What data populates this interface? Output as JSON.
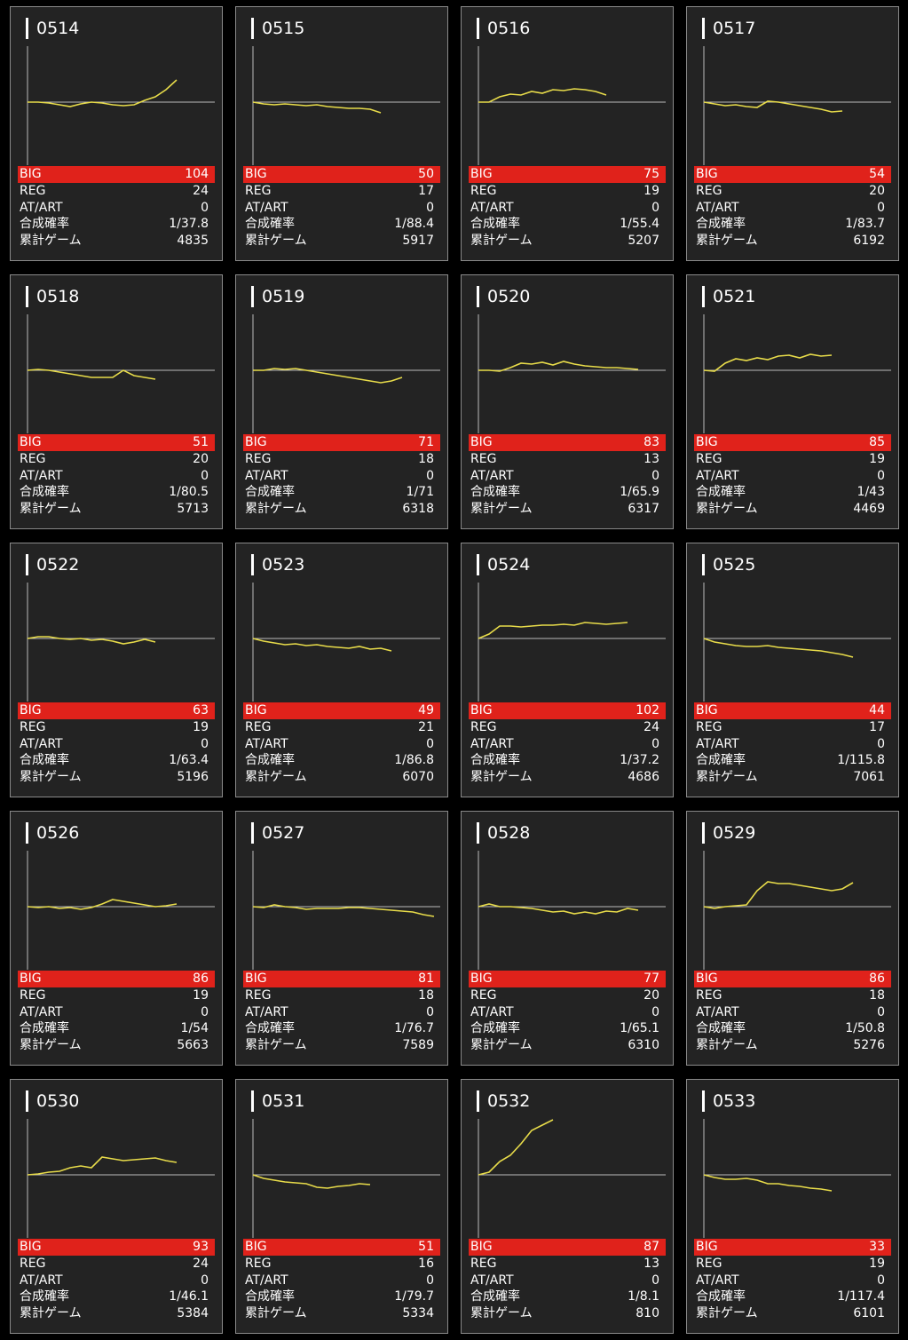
{
  "stat_labels": [
    "BIG",
    "REG",
    "AT/ART",
    "合成確率",
    "累計ゲーム"
  ],
  "cards": [
    {
      "id": "0514",
      "stats": [
        104,
        24,
        0,
        "1/37.8",
        4835
      ],
      "line": [
        0,
        0,
        -1,
        -3,
        -5,
        -2,
        0,
        -1,
        -3,
        -4,
        -3,
        2,
        6,
        14,
        25
      ]
    },
    {
      "id": "0515",
      "stats": [
        50,
        17,
        0,
        "1/88.4",
        5917
      ],
      "line": [
        0,
        -2,
        -3,
        -2,
        -3,
        -4,
        -3,
        -5,
        -6,
        -7,
        -7,
        -8,
        -12
      ]
    },
    {
      "id": "0516",
      "stats": [
        75,
        19,
        0,
        "1/55.4",
        5207
      ],
      "line": [
        0,
        0,
        6,
        9,
        8,
        12,
        10,
        14,
        13,
        15,
        14,
        12,
        8
      ]
    },
    {
      "id": "0517",
      "stats": [
        54,
        20,
        0,
        "1/83.7",
        6192
      ],
      "line": [
        0,
        -2,
        -4,
        -3,
        -5,
        -6,
        1,
        0,
        -2,
        -4,
        -6,
        -8,
        -11,
        -10
      ]
    },
    {
      "id": "0518",
      "stats": [
        51,
        20,
        0,
        "1/80.5",
        5713
      ],
      "line": [
        0,
        1,
        0,
        -2,
        -4,
        -6,
        -8,
        -8,
        -8,
        0,
        -6,
        -8,
        -10
      ]
    },
    {
      "id": "0519",
      "stats": [
        71,
        18,
        0,
        "1/71",
        6318
      ],
      "line": [
        0,
        0,
        2,
        1,
        2,
        0,
        -2,
        -4,
        -6,
        -8,
        -10,
        -12,
        -14,
        -12,
        -8
      ]
    },
    {
      "id": "0520",
      "stats": [
        83,
        13,
        0,
        "1/65.9",
        6317
      ],
      "line": [
        0,
        0,
        -1,
        3,
        8,
        7,
        9,
        6,
        10,
        7,
        5,
        4,
        3,
        3,
        2,
        1
      ]
    },
    {
      "id": "0521",
      "stats": [
        85,
        19,
        0,
        "1/43",
        4469
      ],
      "line": [
        0,
        -1,
        8,
        13,
        11,
        14,
        12,
        16,
        17,
        14,
        18,
        16,
        17
      ]
    },
    {
      "id": "0522",
      "stats": [
        63,
        19,
        0,
        "1/63.4",
        5196
      ],
      "line": [
        0,
        2,
        2,
        0,
        -1,
        0,
        -2,
        -1,
        -3,
        -6,
        -4,
        -1,
        -4
      ]
    },
    {
      "id": "0523",
      "stats": [
        49,
        21,
        0,
        "1/86.8",
        6070
      ],
      "line": [
        0,
        -3,
        -5,
        -7,
        -6,
        -8,
        -7,
        -9,
        -10,
        -11,
        -9,
        -12,
        -11,
        -14
      ]
    },
    {
      "id": "0524",
      "stats": [
        102,
        24,
        0,
        "1/37.2",
        4686
      ],
      "line": [
        0,
        5,
        14,
        14,
        13,
        14,
        15,
        15,
        16,
        15,
        18,
        17,
        16,
        17,
        18
      ]
    },
    {
      "id": "0525",
      "stats": [
        44,
        17,
        0,
        "1/115.8",
        7061
      ],
      "line": [
        0,
        -4,
        -6,
        -8,
        -9,
        -9,
        -8,
        -10,
        -11,
        -12,
        -13,
        -14,
        -16,
        -18,
        -21
      ]
    },
    {
      "id": "0526",
      "stats": [
        86,
        19,
        0,
        "1/54",
        5663
      ],
      "line": [
        0,
        -1,
        0,
        -2,
        -1,
        -3,
        -1,
        3,
        8,
        6,
        4,
        2,
        0,
        1,
        3
      ]
    },
    {
      "id": "0527",
      "stats": [
        81,
        18,
        0,
        "1/76.7",
        7589
      ],
      "line": [
        0,
        -1,
        2,
        0,
        -1,
        -3,
        -2,
        -2,
        -2,
        -1,
        -1,
        -2,
        -3,
        -4,
        -5,
        -6,
        -9,
        -11
      ]
    },
    {
      "id": "0528",
      "stats": [
        77,
        20,
        0,
        "1/65.1",
        6310
      ],
      "line": [
        0,
        3,
        0,
        0,
        -1,
        -2,
        -4,
        -6,
        -5,
        -8,
        -6,
        -8,
        -5,
        -6,
        -2,
        -4
      ]
    },
    {
      "id": "0529",
      "stats": [
        86,
        18,
        0,
        "1/50.8",
        5276
      ],
      "line": [
        0,
        -2,
        0,
        1,
        2,
        18,
        28,
        26,
        26,
        24,
        22,
        20,
        18,
        20,
        27
      ]
    },
    {
      "id": "0530",
      "stats": [
        93,
        24,
        0,
        "1/46.1",
        5384
      ],
      "line": [
        0,
        1,
        3,
        4,
        8,
        10,
        8,
        20,
        18,
        16,
        17,
        18,
        19,
        16,
        14
      ]
    },
    {
      "id": "0531",
      "stats": [
        51,
        16,
        0,
        "1/79.7",
        5334
      ],
      "line": [
        0,
        -4,
        -6,
        -8,
        -9,
        -10,
        -14,
        -15,
        -13,
        -12,
        -10,
        -11
      ]
    },
    {
      "id": "0532",
      "stats": [
        87,
        13,
        0,
        "1/8.1",
        810
      ],
      "line": [
        0,
        3,
        15,
        22,
        35,
        50,
        56,
        62
      ]
    },
    {
      "id": "0533",
      "stats": [
        33,
        19,
        0,
        "1/117.4",
        6101
      ],
      "line": [
        0,
        -3,
        -5,
        -5,
        -4,
        -6,
        -10,
        -10,
        -12,
        -13,
        -15,
        -16,
        -18
      ]
    }
  ]
}
